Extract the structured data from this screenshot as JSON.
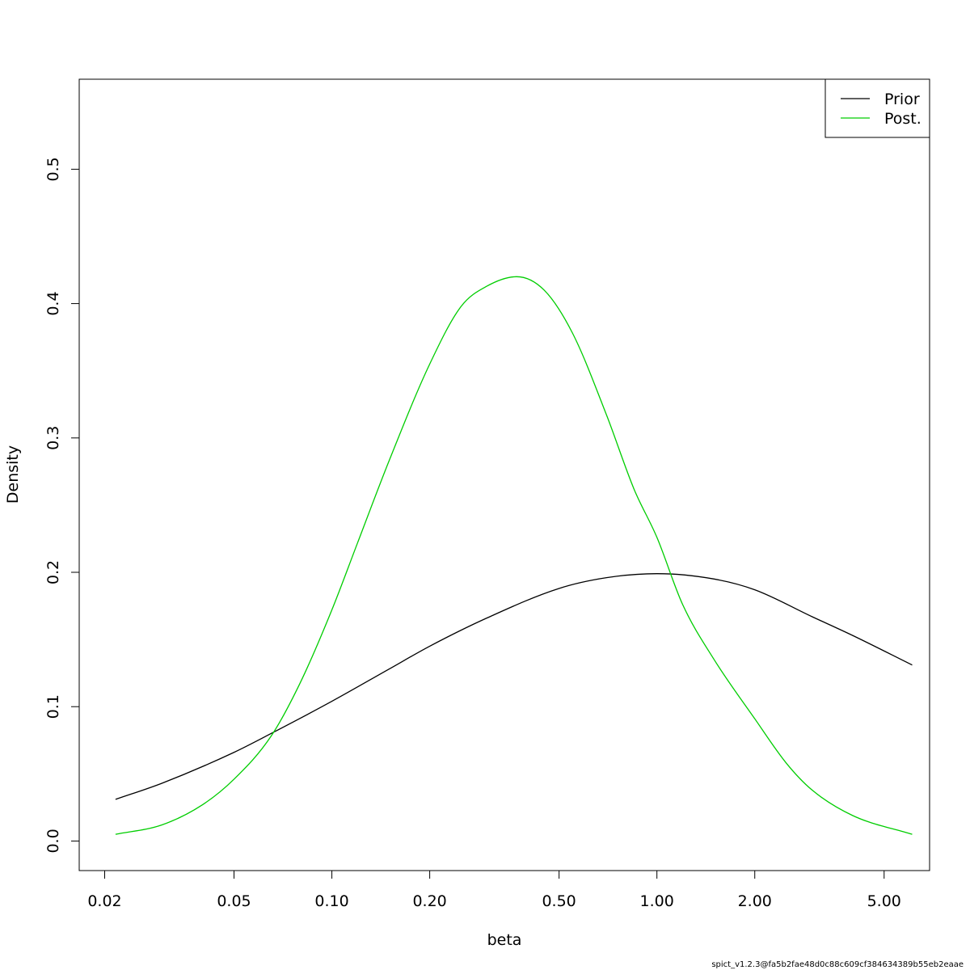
{
  "chart_data": {
    "type": "line",
    "xlabel": "beta",
    "ylabel": "Density",
    "x_scale": "log",
    "xlim": [
      0.0167,
      6.9
    ],
    "ylim": [
      -0.022,
      0.567
    ],
    "x_ticks": [
      {
        "value": 0.02,
        "label": "0.02"
      },
      {
        "value": 0.05,
        "label": "0.05"
      },
      {
        "value": 0.1,
        "label": "0.10"
      },
      {
        "value": 0.2,
        "label": "0.20"
      },
      {
        "value": 0.5,
        "label": "0.50"
      },
      {
        "value": 1.0,
        "label": "1.00"
      },
      {
        "value": 2.0,
        "label": "2.00"
      },
      {
        "value": 5.0,
        "label": "5.00"
      }
    ],
    "y_ticks": [
      {
        "value": 0.0,
        "label": "0.0"
      },
      {
        "value": 0.1,
        "label": "0.1"
      },
      {
        "value": 0.2,
        "label": "0.2"
      },
      {
        "value": 0.3,
        "label": "0.3"
      },
      {
        "value": 0.4,
        "label": "0.4"
      },
      {
        "value": 0.5,
        "label": "0.5"
      }
    ],
    "grid": false,
    "legend_position": "top-right",
    "series": [
      {
        "name": "Prior",
        "color": "#000000",
        "x": [
          0.0216,
          0.03,
          0.05,
          0.065,
          0.1,
          0.15,
          0.2,
          0.3,
          0.5,
          0.7,
          1.0,
          1.5,
          2.0,
          3.0,
          4.0,
          6.1
        ],
        "y": [
          0.031,
          0.043,
          0.066,
          0.08,
          0.104,
          0.128,
          0.145,
          0.166,
          0.188,
          0.196,
          0.199,
          0.195,
          0.187,
          0.167,
          0.153,
          0.131
        ]
      },
      {
        "name": "Post.",
        "color": "#00cd00",
        "x": [
          0.0216,
          0.03,
          0.04,
          0.05,
          0.065,
          0.08,
          0.1,
          0.12,
          0.15,
          0.2,
          0.25,
          0.3,
          0.37,
          0.45,
          0.55,
          0.7,
          0.85,
          1.0,
          1.2,
          1.5,
          2.0,
          2.5,
          3.0,
          4.0,
          6.1
        ],
        "y": [
          0.005,
          0.012,
          0.027,
          0.046,
          0.078,
          0.118,
          0.172,
          0.222,
          0.283,
          0.355,
          0.398,
          0.413,
          0.42,
          0.41,
          0.378,
          0.317,
          0.262,
          0.226,
          0.176,
          0.135,
          0.091,
          0.058,
          0.038,
          0.019,
          0.005
        ]
      }
    ]
  },
  "footer": {
    "text": "spict_v1.2.3@fa5b2fae48d0c88c609cf384634389b55eb2eaae"
  }
}
